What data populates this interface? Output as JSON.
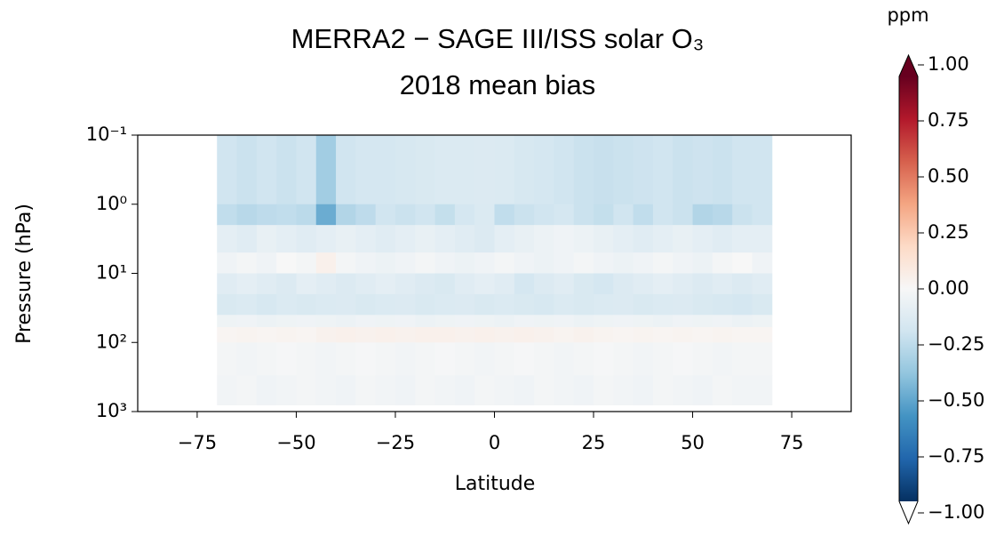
{
  "chart_data": {
    "type": "heatmap",
    "title": "MERRA2 − SAGE III/ISS solar O₃",
    "subtitle": "2018 mean bias",
    "x_label": "Latitude",
    "y_label": "Pressure (hPa)",
    "colorbar_label": "ppm",
    "xlim": [
      -90,
      90
    ],
    "xticks": [
      {
        "value": -75,
        "label": "−75"
      },
      {
        "value": -50,
        "label": "−50"
      },
      {
        "value": -25,
        "label": "−25"
      },
      0,
      25,
      50,
      75
    ],
    "ylim": [
      1000,
      0.1
    ],
    "yscale": "log",
    "yticks": [
      {
        "value": 0.1,
        "label": "10⁻¹"
      },
      {
        "value": 1,
        "label": "10⁰"
      },
      {
        "value": 10,
        "label": "10¹"
      },
      {
        "value": 100,
        "label": "10²"
      },
      {
        "value": 1000,
        "label": "10³"
      }
    ],
    "clim": [
      -1,
      1
    ],
    "cticks": [
      {
        "value": 1,
        "label": "1.00"
      },
      {
        "value": 0.75,
        "label": "0.75"
      },
      {
        "value": 0.5,
        "label": "0.50"
      },
      {
        "value": 0.25,
        "label": "0.25"
      },
      {
        "value": 0,
        "label": "0.00"
      },
      {
        "value": -0.25,
        "label": "−0.25"
      },
      {
        "value": -0.5,
        "label": "−0.50"
      },
      {
        "value": -0.75,
        "label": "−0.75"
      },
      {
        "value": -1,
        "label": "−1.00"
      }
    ],
    "colormap": [
      "#053061",
      "#2166ac",
      "#4393c3",
      "#92c5de",
      "#d1e5f0",
      "#f7f7f7",
      "#fddbc7",
      "#f4a582",
      "#d6604d",
      "#b2182b",
      "#67001f"
    ],
    "x_edges": [
      -70,
      -65,
      -60,
      -55,
      -50,
      -45,
      -40,
      -35,
      -30,
      -25,
      -20,
      -15,
      -10,
      -5,
      0,
      5,
      10,
      15,
      20,
      25,
      30,
      35,
      40,
      45,
      50,
      55,
      60,
      65,
      70
    ],
    "y_edges": [
      0.1,
      1,
      2,
      5,
      10,
      20,
      40,
      60,
      100,
      300,
      800
    ],
    "values": [
      [
        -0.2,
        -0.22,
        -0.2,
        -0.22,
        -0.2,
        -0.35,
        -0.2,
        -0.18,
        -0.18,
        -0.17,
        -0.16,
        -0.15,
        -0.15,
        -0.14,
        -0.15,
        -0.17,
        -0.18,
        -0.2,
        -0.22,
        -0.23,
        -0.22,
        -0.21,
        -0.2,
        -0.22,
        -0.21,
        -0.22,
        -0.2,
        -0.2
      ],
      [
        -0.25,
        -0.28,
        -0.26,
        -0.25,
        -0.27,
        -0.5,
        -0.3,
        -0.26,
        -0.2,
        -0.22,
        -0.2,
        -0.24,
        -0.18,
        -0.15,
        -0.25,
        -0.22,
        -0.2,
        -0.18,
        -0.22,
        -0.24,
        -0.2,
        -0.25,
        -0.2,
        -0.22,
        -0.3,
        -0.28,
        -0.22,
        -0.2
      ],
      [
        -0.1,
        -0.12,
        -0.08,
        -0.1,
        -0.12,
        -0.1,
        -0.08,
        -0.1,
        -0.12,
        -0.1,
        -0.08,
        -0.1,
        -0.12,
        -0.14,
        -0.1,
        -0.08,
        -0.06,
        -0.04,
        -0.06,
        -0.08,
        -0.1,
        -0.12,
        -0.1,
        -0.08,
        -0.1,
        -0.12,
        -0.1,
        -0.1
      ],
      [
        -0.04,
        -0.02,
        -0.04,
        0.0,
        -0.02,
        0.05,
        -0.02,
        -0.04,
        -0.06,
        -0.04,
        -0.02,
        -0.04,
        -0.06,
        -0.04,
        -0.02,
        -0.04,
        -0.06,
        -0.04,
        -0.02,
        -0.04,
        -0.06,
        -0.04,
        -0.02,
        -0.04,
        -0.06,
        -0.02,
        0.0,
        -0.04
      ],
      [
        -0.12,
        -0.1,
        -0.12,
        -0.14,
        -0.1,
        -0.12,
        -0.14,
        -0.12,
        -0.1,
        -0.12,
        -0.14,
        -0.16,
        -0.12,
        -0.1,
        -0.12,
        -0.18,
        -0.14,
        -0.12,
        -0.16,
        -0.18,
        -0.14,
        -0.12,
        -0.1,
        -0.12,
        -0.14,
        -0.12,
        -0.14,
        -0.12
      ],
      [
        -0.16,
        -0.15,
        -0.17,
        -0.15,
        -0.16,
        -0.15,
        -0.14,
        -0.16,
        -0.15,
        -0.14,
        -0.16,
        -0.15,
        -0.14,
        -0.16,
        -0.15,
        -0.16,
        -0.17,
        -0.15,
        -0.16,
        -0.15,
        -0.14,
        -0.16,
        -0.15,
        -0.14,
        -0.16,
        -0.17,
        -0.18,
        -0.16
      ],
      [
        -0.05,
        -0.04,
        -0.06,
        -0.05,
        -0.04,
        -0.05,
        -0.06,
        -0.04,
        -0.05,
        -0.04,
        -0.06,
        -0.05,
        -0.04,
        -0.05,
        -0.06,
        -0.04,
        -0.05,
        -0.04,
        -0.06,
        -0.05,
        -0.04,
        -0.05,
        -0.06,
        -0.04,
        -0.05,
        -0.04,
        -0.06,
        -0.05
      ],
      [
        0.02,
        0.03,
        0.02,
        0.03,
        0.02,
        0.04,
        0.05,
        0.04,
        0.05,
        0.04,
        0.05,
        0.05,
        0.04,
        0.05,
        0.04,
        0.05,
        0.04,
        0.03,
        0.04,
        0.03,
        0.02,
        0.03,
        0.02,
        0.03,
        0.02,
        0.03,
        0.02,
        0.02
      ],
      [
        -0.02,
        -0.03,
        -0.02,
        -0.01,
        -0.02,
        -0.03,
        -0.02,
        -0.01,
        -0.02,
        -0.03,
        -0.02,
        -0.01,
        -0.02,
        -0.03,
        -0.02,
        -0.01,
        -0.02,
        -0.03,
        -0.02,
        -0.01,
        -0.02,
        -0.03,
        -0.02,
        -0.01,
        -0.02,
        -0.03,
        -0.02,
        -0.02
      ],
      [
        -0.03,
        -0.02,
        -0.04,
        -0.03,
        -0.02,
        -0.03,
        -0.04,
        -0.02,
        -0.03,
        -0.04,
        -0.02,
        -0.03,
        -0.04,
        -0.02,
        -0.03,
        -0.04,
        -0.02,
        -0.03,
        -0.04,
        -0.02,
        -0.03,
        -0.04,
        -0.02,
        -0.03,
        -0.04,
        -0.02,
        -0.03,
        -0.03
      ]
    ]
  }
}
